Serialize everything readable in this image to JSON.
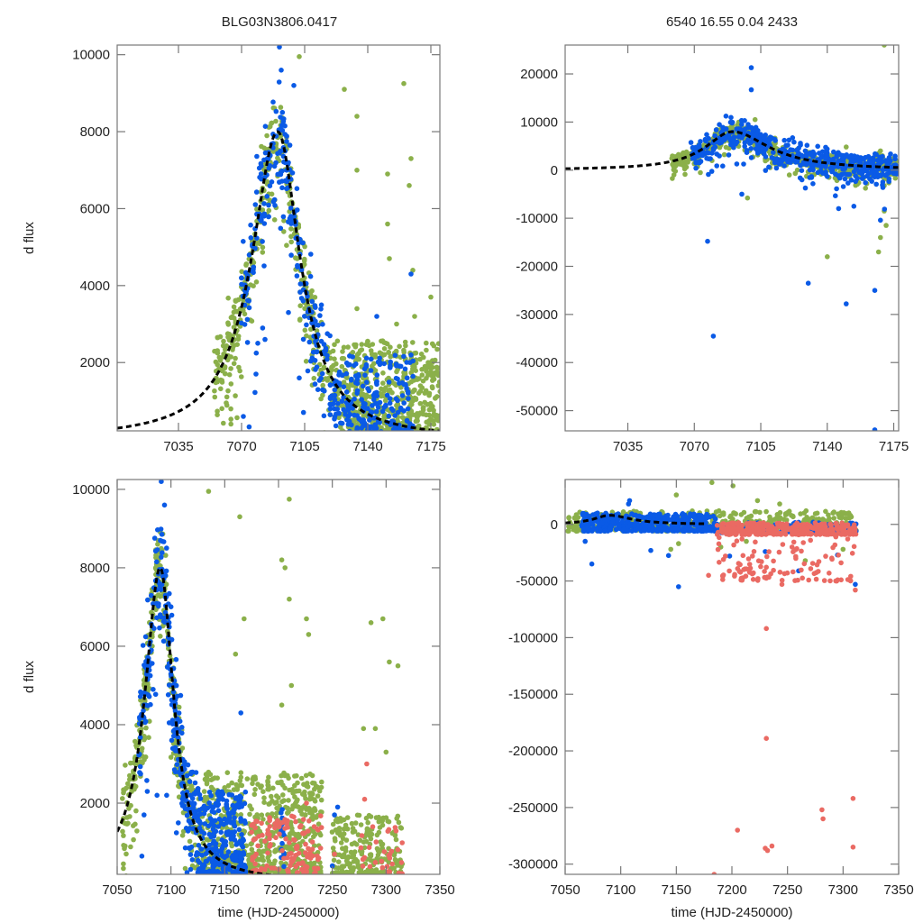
{
  "figure": {
    "titles": {
      "left": "BLG03N3806.0417",
      "right": "6540  16.55  0.04  2433"
    },
    "colors": {
      "series_a": "#8bb04a",
      "series_b": "#0a5ae6",
      "series_c": "#ea6a63",
      "model": "#000000",
      "frame": "#777777"
    }
  },
  "chart_data": [
    {
      "id": "top-left",
      "type": "scatter",
      "title": "BLG03N3806.0417",
      "xlabel": "",
      "ylabel": "d flux",
      "xlim": [
        7001,
        7180
      ],
      "ylim": [
        225,
        10250
      ],
      "xticks": [
        7035,
        7070,
        7105,
        7140,
        7175
      ],
      "xtick_labels": [
        "7035",
        "7070",
        "7105",
        "7140",
        "7175"
      ],
      "yticks": [
        2000,
        4000,
        6000,
        8000,
        10000
      ],
      "ytick_labels": [
        "2000",
        "4000",
        "6000",
        "8000",
        "10000"
      ],
      "grid": false,
      "model": {
        "t0": 7090,
        "peak": 8000,
        "base": 0,
        "tE_rise": 22,
        "tE_fall": 19
      },
      "series": [
        {
          "name": "green",
          "color_key": "series_a",
          "clusters": [
            {
              "x": [
                7055,
                7125
              ],
              "follow_model": true,
              "scatter": 900,
              "n": 420
            },
            {
              "x": [
                7125,
                7180
              ],
              "y": [
                200,
                2600
              ],
              "n": 520
            }
          ],
          "outliers": [
            [
              7102,
              9950
            ],
            [
              7127,
              9100
            ],
            [
              7134,
              8400
            ],
            [
              7160,
              9250
            ],
            [
              7134,
              7000
            ],
            [
              7151,
              6900
            ],
            [
              7163,
              6600
            ],
            [
              7164,
              7300
            ],
            [
              7151,
              5600
            ],
            [
              7152,
              4700
            ],
            [
              7165,
              4400
            ],
            [
              7175,
              3700
            ],
            [
              7134,
              3400
            ],
            [
              7166,
              3200
            ],
            [
              7156,
              3000
            ],
            [
              7061,
              2200
            ]
          ]
        },
        {
          "name": "blue",
          "color_key": "series_b",
          "clusters": [
            {
              "x": [
                7070,
                7125
              ],
              "follow_model": true,
              "scatter": 1300,
              "n": 260
            },
            {
              "x": [
                7125,
                7165
              ],
              "y": [
                200,
                2200
              ],
              "n": 200
            }
          ],
          "outliers": [
            [
              7091,
              10200
            ],
            [
              7092,
              9600
            ],
            [
              7099,
              9200
            ],
            [
              7071,
              600
            ],
            [
              7078,
              1700
            ],
            [
              7083,
              2600
            ],
            [
              7096,
              3300
            ],
            [
              7102,
              1600
            ],
            [
              7164,
              4300
            ],
            [
              7145,
              3200
            ]
          ]
        }
      ]
    },
    {
      "id": "top-right",
      "type": "scatter",
      "title": "6540  16.55  0.04  2433",
      "xlabel": "",
      "ylabel": "",
      "xlim": [
        7002,
        7177.6
      ],
      "ylim": [
        -54200,
        26000
      ],
      "xticks": [
        7035,
        7070,
        7105,
        7140,
        7175
      ],
      "xtick_labels": [
        "7035",
        "7070",
        "7105",
        "7140",
        "7175"
      ],
      "yticks": [
        -50000,
        -40000,
        -30000,
        -20000,
        -10000,
        0,
        10000,
        20000
      ],
      "ytick_labels": [
        "-50000",
        "-40000",
        "-30000",
        "-20000",
        "-10000",
        "0",
        "10000",
        "20000"
      ],
      "grid": false,
      "model": {
        "t0": 7090,
        "peak": 8000,
        "base": 0,
        "tE_rise": 22,
        "tE_fall": 30
      },
      "series": [
        {
          "name": "green",
          "color_key": "series_a",
          "clusters": [
            {
              "x": [
                7058,
                7177
              ],
              "follow_model": true,
              "scatter": 1500,
              "n": 700
            }
          ],
          "outliers": [
            [
              7102,
              10500
            ],
            [
              7170,
              26000
            ],
            [
              7167,
              3500
            ],
            [
              7150,
              4800
            ],
            [
              7168,
              4000
            ],
            [
              7170,
              -8500
            ],
            [
              7171,
              -11500
            ],
            [
              7168,
              -14000
            ],
            [
              7167,
              -17000
            ],
            [
              7140,
              -18000
            ],
            [
              7182,
              10500
            ],
            [
              7177,
              500
            ],
            [
              7098,
              -5800
            ]
          ]
        },
        {
          "name": "blue",
          "color_key": "series_b",
          "clusters": [
            {
              "x": [
                7068,
                7177
              ],
              "follow_model": true,
              "scatter": 2500,
              "n": 520
            }
          ],
          "outliers": [
            [
              7100,
              21300
            ],
            [
              7100,
              16700
            ],
            [
              7077,
              -14800
            ],
            [
              7080,
              -34500
            ],
            [
              7130,
              -23500
            ],
            [
              7150,
              -27800
            ],
            [
              7165,
              -25000
            ],
            [
              7146,
              -8000
            ],
            [
              7154,
              -7500
            ],
            [
              7168,
              -10400
            ],
            [
              7095,
              -5000
            ],
            [
              7165,
              -54000
            ]
          ]
        }
      ]
    },
    {
      "id": "bottom-left",
      "type": "scatter",
      "title": "",
      "xlabel": "time (HJD-2450000)",
      "ylabel": "d flux",
      "xlim": [
        7050,
        7350
      ],
      "ylim": [
        185,
        10250
      ],
      "xticks": [
        7050,
        7100,
        7150,
        7200,
        7250,
        7300,
        7350
      ],
      "xtick_labels": [
        "7050",
        "7100",
        "7150",
        "7200",
        "7250",
        "7300",
        "7350"
      ],
      "yticks": [
        2000,
        4000,
        6000,
        8000,
        10000
      ],
      "ytick_labels": [
        "2000",
        "4000",
        "6000",
        "8000",
        "10000"
      ],
      "grid": false,
      "model": {
        "t0": 7090,
        "peak": 8000,
        "base": 0,
        "tE_rise": 22,
        "tE_fall": 19
      },
      "series": [
        {
          "name": "green",
          "color_key": "series_a",
          "clusters": [
            {
              "x": [
                7055,
                7130
              ],
              "follow_model": true,
              "scatter": 900,
              "n": 380
            },
            {
              "x": [
                7130,
                7240
              ],
              "y": [
                200,
                2800
              ],
              "n": 650
            },
            {
              "x": [
                7250,
                7315
              ],
              "y": [
                200,
                1700
              ],
              "n": 230
            }
          ],
          "outliers": [
            [
              7135,
              9950
            ],
            [
              7210,
              9750
            ],
            [
              7164,
              9300
            ],
            [
              7203,
              8200
            ],
            [
              7206,
              8000
            ],
            [
              7210,
              7200
            ],
            [
              7168,
              6700
            ],
            [
              7226,
              6700
            ],
            [
              7228,
              6300
            ],
            [
              7286,
              6600
            ],
            [
              7297,
              6700
            ],
            [
              7303,
              5600
            ],
            [
              7311,
              5500
            ],
            [
              7160,
              5800
            ],
            [
              7212,
              5000
            ],
            [
              7203,
              4500
            ],
            [
              7290,
              3900
            ],
            [
              7279,
              3900
            ],
            [
              7300,
              3300
            ]
          ]
        },
        {
          "name": "blue",
          "color_key": "series_b",
          "clusters": [
            {
              "x": [
                7070,
                7125
              ],
              "follow_model": true,
              "scatter": 1300,
              "n": 260
            },
            {
              "x": [
                7125,
                7170
              ],
              "y": [
                200,
                2300
              ],
              "n": 260
            },
            {
              "x": [
                7202,
                7206
              ],
              "y": [
                300,
                2000
              ],
              "n": 15
            }
          ],
          "outliers": [
            [
              7091,
              10200
            ],
            [
              7094,
              9600
            ],
            [
              7073,
              650
            ],
            [
              7075,
              1700
            ],
            [
              7078,
              2300
            ],
            [
              7087,
              2200
            ],
            [
              7096,
              2200
            ],
            [
              7165,
              4300
            ],
            [
              7252,
              1700
            ],
            [
              7255,
              1900
            ],
            [
              7125,
              2300
            ],
            [
              7250,
              400
            ]
          ]
        },
        {
          "name": "red",
          "color_key": "series_c",
          "clusters": [
            {
              "x": [
                7175,
                7240
              ],
              "y": [
                200,
                1700
              ],
              "n": 130
            },
            {
              "x": [
                7275,
                7315
              ],
              "y": [
                200,
                1400
              ],
              "n": 30
            }
          ],
          "outliers": [
            [
              7282,
              3000
            ],
            [
              7280,
              2100
            ],
            [
              7226,
              2000
            ],
            [
              7252,
              700
            ],
            [
              7315,
              200
            ]
          ]
        }
      ]
    },
    {
      "id": "bottom-right",
      "type": "scatter",
      "title": "",
      "xlabel": "time (HJD-2450000)",
      "ylabel": "",
      "xlim": [
        7050,
        7350
      ],
      "ylim": [
        -309000,
        39600
      ],
      "xticks": [
        7050,
        7100,
        7150,
        7200,
        7250,
        7300,
        7350
      ],
      "xtick_labels": [
        "7050",
        "7100",
        "7150",
        "7200",
        "7250",
        "7300",
        "7350"
      ],
      "yticks": [
        -300000,
        -250000,
        -200000,
        -150000,
        -100000,
        -50000,
        0
      ],
      "ytick_labels": [
        "-300000",
        "-250000",
        "-200000",
        "-150000",
        "-100000",
        "-50000",
        "0"
      ],
      "grid": false,
      "model": {
        "t0": 7090,
        "peak": 8000,
        "base": 0,
        "tE_rise": 22,
        "tE_fall": 30,
        "x_max": 7175
      },
      "series": [
        {
          "name": "green",
          "color_key": "series_a",
          "clusters": [
            {
              "x": [
                7052,
                7312
              ],
              "y": [
                -6000,
                12000
              ],
              "n": 500
            }
          ],
          "outliers": [
            [
              7182,
              37000
            ],
            [
              7201,
              34000
            ],
            [
              7150,
              26000
            ],
            [
              7223,
              21000
            ],
            [
              7243,
              18000
            ],
            [
              7145,
              -22000
            ],
            [
              7152,
              -17000
            ],
            [
              7190,
              -20000
            ],
            [
              7213,
              -15000
            ],
            [
              7266,
              -32000
            ],
            [
              7300,
              -22000
            ]
          ]
        },
        {
          "name": "blue",
          "color_key": "series_b",
          "clusters": [
            {
              "x": [
                7065,
                7185
              ],
              "y": [
                -6000,
                10000
              ],
              "n": 420
            },
            {
              "x": [
                7185,
                7312
              ],
              "y": [
                -8000,
                2000
              ],
              "n": 120
            }
          ],
          "outliers": [
            [
              7068,
              -15000
            ],
            [
              7074,
              -35000
            ],
            [
              7127,
              -23000
            ],
            [
              7143,
              -27500
            ],
            [
              7152,
              -55000
            ],
            [
              7108,
              21000
            ],
            [
              7107,
              18000
            ],
            [
              7260,
              -41000
            ],
            [
              7295,
              -27000
            ],
            [
              7311,
              -53000
            ],
            [
              7198,
              -28000
            ],
            [
              7230,
              -24000
            ]
          ]
        },
        {
          "name": "red",
          "color_key": "series_c",
          "clusters": [
            {
              "x": [
                7186,
                7312
              ],
              "y": [
                -9000,
                1500
              ],
              "n": 360
            },
            {
              "x": [
                7186,
                7312
              ],
              "y": [
                -50000,
                -9000
              ],
              "n": 110
            }
          ],
          "outliers": [
            [
              7231,
              -92000
            ],
            [
              7231,
              -189000
            ],
            [
              7205,
              -270000
            ],
            [
              7232,
              -288000
            ],
            [
              7236,
              -284000
            ],
            [
              7230,
              -286000
            ],
            [
              7281,
              -252000
            ],
            [
              7282,
              -260000
            ],
            [
              7309,
              -242000
            ],
            [
              7309,
              -285000
            ],
            [
              7184,
              -309000
            ],
            [
              7311,
              -58000
            ],
            [
              7245,
              -53000
            ],
            [
              7179,
              -45000
            ]
          ]
        }
      ]
    }
  ]
}
